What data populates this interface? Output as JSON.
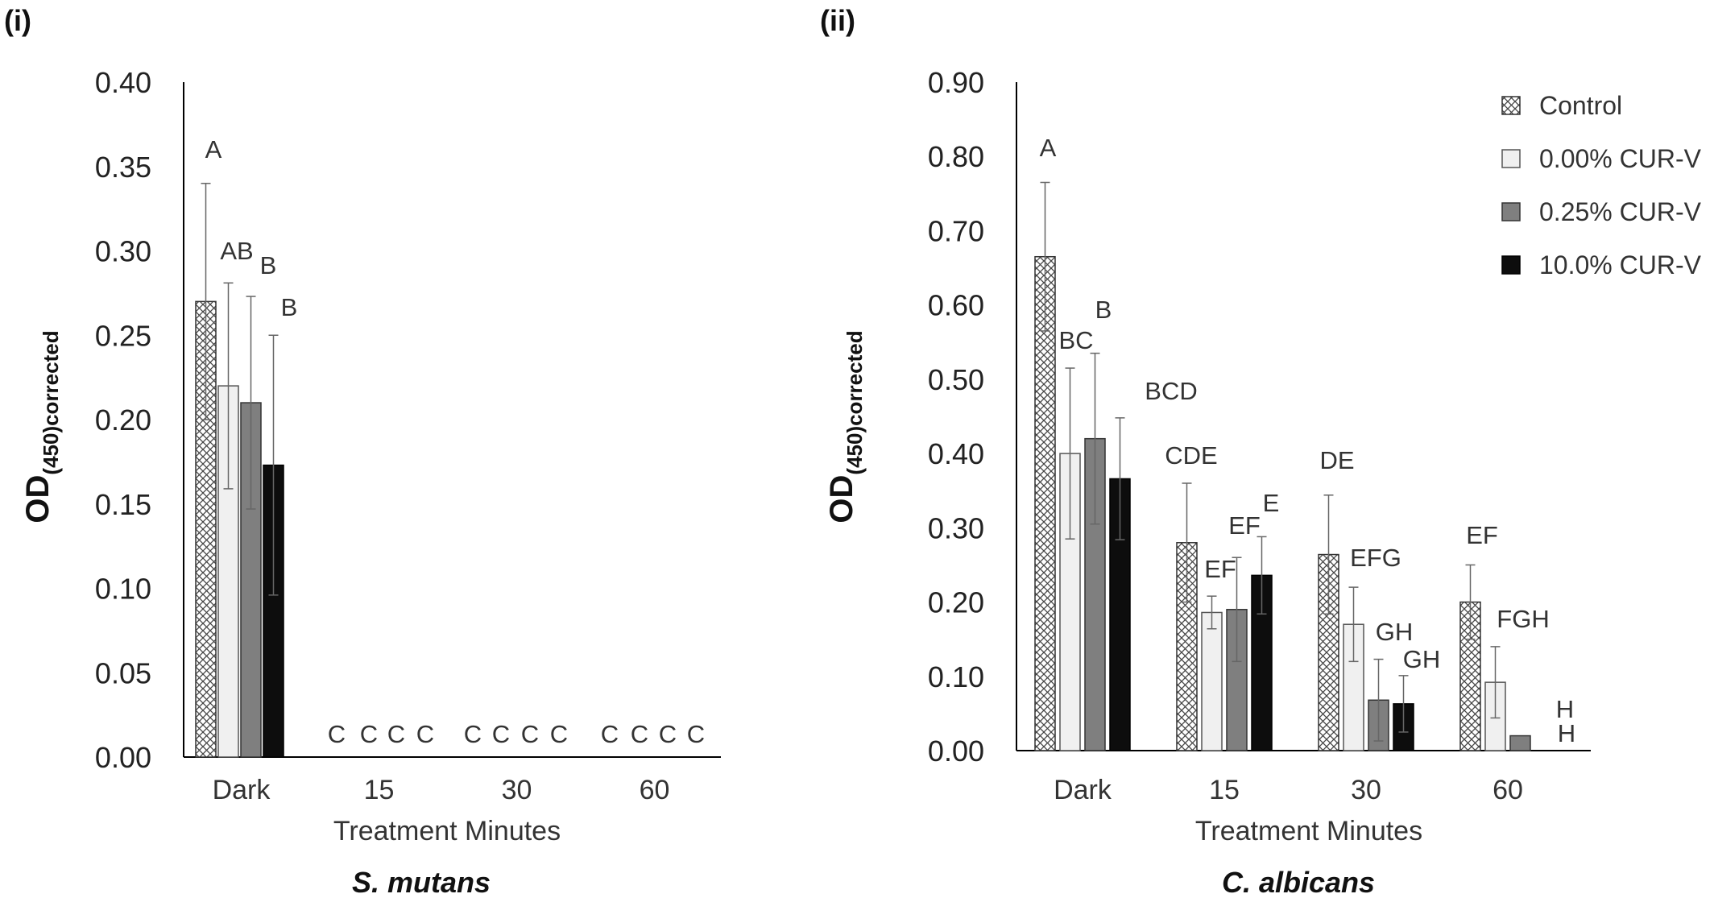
{
  "colors": {
    "control_pattern": "crosshatch",
    "control_stroke": "#333333",
    "cur_000": "#f0f0f0",
    "cur_025": "#7f7f7f",
    "cur_100": "#0d0d0d",
    "axis": "#000000",
    "error_bar": "#666666"
  },
  "chart_data": [
    {
      "panel_label": "(i)",
      "type": "bar",
      "title": "S. mutans",
      "xlabel": "Treatment Minutes",
      "ylabel_main": "OD",
      "ylabel_sub": "(450)corrected",
      "ylim": [
        0,
        0.4
      ],
      "yticks": [
        "0.00",
        "0.05",
        "0.10",
        "0.15",
        "0.20",
        "0.25",
        "0.30",
        "0.35",
        "0.40"
      ],
      "legend": "none",
      "categories": [
        "Dark",
        "15",
        "30",
        "60"
      ],
      "series": [
        {
          "name": "Control",
          "values": [
            0.27,
            0,
            0,
            0
          ],
          "errors": [
            0.07,
            0,
            0,
            0
          ],
          "labels": [
            "A",
            "C",
            "C",
            "C"
          ]
        },
        {
          "name": "0.00% CUR-V",
          "values": [
            0.22,
            0,
            0,
            0
          ],
          "errors": [
            0.061,
            0,
            0,
            0
          ],
          "labels": [
            "AB",
            "C",
            "C",
            "C"
          ]
        },
        {
          "name": "0.25% CUR-V",
          "values": [
            0.21,
            0,
            0,
            0
          ],
          "errors": [
            0.063,
            0,
            0,
            0
          ],
          "labels": [
            "B",
            "C",
            "C",
            "C"
          ]
        },
        {
          "name": "10.0% CUR-V",
          "values": [
            0.173,
            0,
            0,
            0
          ],
          "errors": [
            0.077,
            0,
            0,
            0
          ],
          "labels": [
            "B",
            "C",
            "C",
            "C"
          ]
        }
      ]
    },
    {
      "panel_label": "(ii)",
      "type": "bar",
      "title": "C. albicans",
      "xlabel": "Treatment Minutes",
      "ylabel_main": "OD",
      "ylabel_sub": "(450)corrected",
      "ylim": [
        0,
        0.9
      ],
      "yticks": [
        "0.00",
        "0.10",
        "0.20",
        "0.30",
        "0.40",
        "0.50",
        "0.60",
        "0.70",
        "0.80",
        "0.90"
      ],
      "legend": "top-right",
      "categories": [
        "Dark",
        "15",
        "30",
        "60"
      ],
      "series": [
        {
          "name": "Control",
          "values": [
            0.665,
            0.28,
            0.264,
            0.2
          ],
          "errors": [
            0.1,
            0.08,
            0.08,
            0.05
          ],
          "labels": [
            "A",
            "CDE",
            "DE",
            "EF"
          ]
        },
        {
          "name": "0.00% CUR-V",
          "values": [
            0.4,
            0.186,
            0.17,
            0.092
          ],
          "errors": [
            0.115,
            0.022,
            0.05,
            0.048
          ],
          "labels": [
            "BC",
            "EF",
            "EFG",
            "FGH"
          ]
        },
        {
          "name": "0.25% CUR-V",
          "values": [
            0.42,
            0.19,
            0.068,
            0.02
          ],
          "errors": [
            0.115,
            0.07,
            0.055,
            0
          ],
          "labels": [
            "B",
            "EF",
            "GH",
            "H"
          ]
        },
        {
          "name": "10.0% CUR-V",
          "values": [
            0.366,
            0.236,
            0.063,
            0
          ],
          "errors": [
            0.082,
            0.052,
            0.038,
            0
          ],
          "labels": [
            "BCD",
            "E",
            "GH",
            "H"
          ]
        }
      ]
    }
  ]
}
